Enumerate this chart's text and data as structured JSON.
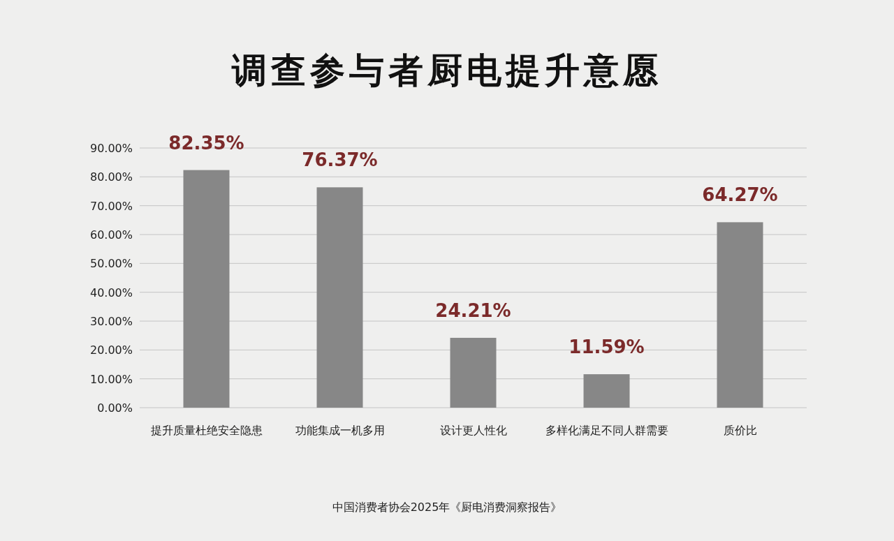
{
  "chart_data": {
    "type": "bar",
    "title": "调查参与者厨电提升意愿",
    "categories": [
      "提升质量杜绝安全隐患",
      "功能集成一机多用",
      "设计更人性化",
      "多样化满足不同人群需要",
      "质价比"
    ],
    "values": [
      82.35,
      76.37,
      24.21,
      11.59,
      64.27
    ],
    "value_labels": [
      "82.35%",
      "76.37%",
      "24.21%",
      "11.59%",
      "64.27%"
    ],
    "color": "#878787",
    "ylim": [
      0,
      90
    ],
    "yticks": [
      {
        "value": 0,
        "label": "0.00%"
      },
      {
        "value": 10,
        "label": "10.00%"
      },
      {
        "value": 20,
        "label": "20.00%"
      },
      {
        "value": 30,
        "label": "30.00%"
      },
      {
        "value": 40,
        "label": "40.00%"
      },
      {
        "value": 50,
        "label": "50.00%"
      },
      {
        "value": 60,
        "label": "60.00%"
      },
      {
        "value": 70,
        "label": "70.00%"
      },
      {
        "value": 80,
        "label": "80.00%"
      },
      {
        "value": 90,
        "label": "90.00%"
      }
    ],
    "grid": "y",
    "annotations": [
      "中国消费者协会2025年《厨电消费洞察报告》"
    ]
  }
}
